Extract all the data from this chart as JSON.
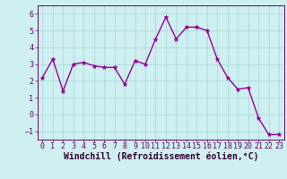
{
  "x": [
    0,
    1,
    2,
    3,
    4,
    5,
    6,
    7,
    8,
    9,
    10,
    11,
    12,
    13,
    14,
    15,
    16,
    17,
    18,
    19,
    20,
    21,
    22,
    23
  ],
  "y": [
    2.2,
    3.3,
    1.4,
    3.0,
    3.1,
    2.9,
    2.8,
    2.8,
    1.8,
    3.2,
    3.0,
    4.5,
    5.8,
    4.5,
    5.2,
    5.2,
    5.0,
    3.3,
    2.2,
    1.5,
    1.6,
    -0.2,
    -1.2,
    -1.2
  ],
  "line_color": "#990099",
  "marker": "*",
  "marker_size": 3.5,
  "bg_color": "#cff0f0",
  "grid_color": "#aadada",
  "xlabel": "Windchill (Refroidissement éolien,°C)",
  "ylim": [
    -1.5,
    6.5
  ],
  "xlim": [
    -0.5,
    23.5
  ],
  "yticks": [
    -1,
    0,
    1,
    2,
    3,
    4,
    5,
    6
  ],
  "xticks": [
    0,
    1,
    2,
    3,
    4,
    5,
    6,
    7,
    8,
    9,
    10,
    11,
    12,
    13,
    14,
    15,
    16,
    17,
    18,
    19,
    20,
    21,
    22,
    23
  ],
  "tick_label_color": "#660066",
  "xlabel_color": "#330033",
  "xlabel_fontsize": 7,
  "tick_fontsize": 6,
  "spine_color": "#660066",
  "linewidth": 1.0
}
